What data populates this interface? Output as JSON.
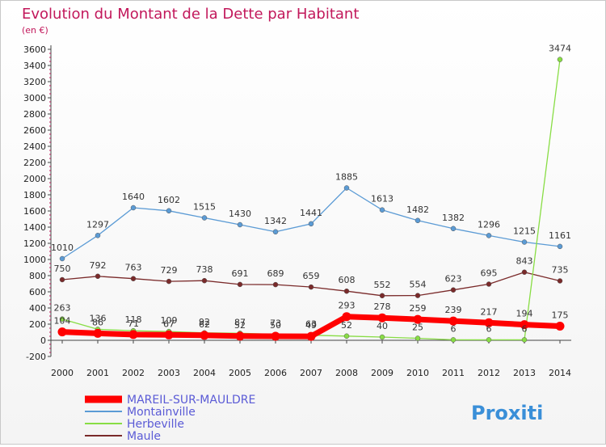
{
  "chart_data": {
    "type": "line",
    "title": "Evolution du Montant de la Dette par Habitant",
    "subtitle": "(en €)",
    "x": [
      "2000",
      "2001",
      "2002",
      "2003",
      "2004",
      "2005",
      "2006",
      "2007",
      "2008",
      "2009",
      "2010",
      "2011",
      "2012",
      "2013",
      "2014"
    ],
    "yticks": [
      -200,
      0,
      200,
      400,
      600,
      800,
      1000,
      1200,
      1400,
      1600,
      1800,
      2000,
      2200,
      2400,
      2600,
      2800,
      3000,
      3200,
      3400,
      3600
    ],
    "ylim": [
      -200,
      3600
    ],
    "grid": false,
    "legend_position": "bottom-left",
    "series": [
      {
        "name": "MAREIL-SUR-MAULDRE",
        "color": "#ff0000",
        "values": [
          104,
          86,
          71,
          67,
          62,
          52,
          50,
          49,
          293,
          278,
          259,
          239,
          217,
          194,
          175
        ],
        "labels": [
          "104",
          "86",
          "71",
          "67",
          "62",
          "52",
          "50",
          "49",
          "293",
          "278",
          "259",
          "239",
          "217",
          "194",
          "175"
        ]
      },
      {
        "name": "Montainville",
        "color": "#5b9bd5",
        "values": [
          1010,
          1297,
          1640,
          1602,
          1515,
          1430,
          1342,
          1441,
          1885,
          1613,
          1482,
          1382,
          1296,
          1215,
          1161
        ],
        "labels": [
          "1010",
          "1297",
          "1640",
          "1602",
          "1515",
          "1430",
          "1342",
          "1441",
          "1885",
          "1613",
          "1482",
          "1382",
          "1296",
          "1215",
          "1161"
        ]
      },
      {
        "name": "Herbeville",
        "color": "#88dd44",
        "values": [
          263,
          136,
          118,
          109,
          92,
          87,
          73,
          63,
          52,
          40,
          25,
          6,
          6,
          6,
          3474
        ],
        "labels": [
          "263",
          "136",
          "118",
          "109",
          "92",
          "87",
          "73",
          "63",
          "52",
          "40",
          "25",
          "6",
          "6",
          "6",
          "3474"
        ]
      },
      {
        "name": "Maule",
        "color": "#7a2a2a",
        "values": [
          750,
          792,
          763,
          729,
          738,
          691,
          689,
          659,
          608,
          552,
          554,
          623,
          695,
          843,
          735
        ],
        "labels": [
          "750",
          "792",
          "763",
          "729",
          "738",
          "691",
          "689",
          "659",
          "608",
          "552",
          "554",
          "623",
          "695",
          "843",
          "735"
        ]
      }
    ]
  },
  "brand": {
    "text": "Proxiti"
  }
}
